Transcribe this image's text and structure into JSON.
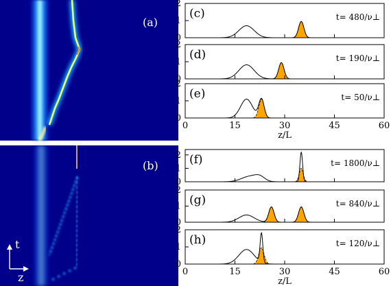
{
  "chart_data": {
    "type": "composite",
    "heatmaps": [
      {
        "panel": "(a)",
        "axis_t_label": "t",
        "axis_z_label": "z"
      },
      {
        "panel": "(b)",
        "axis_t_label": "t",
        "axis_z_label": "z"
      }
    ],
    "line_panels": [
      {
        "panel": "(c)",
        "time_label": "t= 480/ν⊥",
        "xlim": [
          0,
          60
        ],
        "ylim": [
          0,
          2
        ],
        "yticks": [
          "0",
          "1",
          "2"
        ],
        "broad_peak": {
          "center": 18.5,
          "height": 0.7,
          "width": 2.3
        },
        "filled_peaks": [
          {
            "center": 35.0,
            "height": 0.95,
            "width": 0.8
          }
        ]
      },
      {
        "panel": "(d)",
        "time_label": "t= 190/ν⊥",
        "xlim": [
          0,
          60
        ],
        "ylim": [
          0,
          2
        ],
        "yticks": [
          "0",
          "1",
          "2"
        ],
        "broad_peak": {
          "center": 18.5,
          "height": 0.82,
          "width": 2.3
        },
        "filled_peaks": [
          {
            "center": 29.0,
            "height": 0.95,
            "width": 0.8
          }
        ]
      },
      {
        "panel": "(e)",
        "time_label": "t= 50/ν⊥",
        "xlim": [
          0,
          60
        ],
        "ylim": [
          0,
          2
        ],
        "yticks": [
          "0",
          "1",
          "2"
        ],
        "broad_peak": {
          "center": 18.5,
          "height": 1.1,
          "width": 1.8
        },
        "filled_peaks": [
          {
            "center": 23.0,
            "height": 1.1,
            "width": 0.8
          }
        ]
      },
      {
        "panel": "(f)",
        "time_label": "t= 1800/ν⊥",
        "xlim": [
          0,
          60
        ],
        "ylim": [
          0,
          2.4
        ],
        "yticks": [
          "0",
          "1",
          "2"
        ],
        "broad_peak": {
          "center": 19.5,
          "height": 0.4,
          "width": 2.5
        },
        "filled_peaks": [
          {
            "center": 35.0,
            "height": 1.0,
            "width": 0.6
          }
        ],
        "sharp_peak": {
          "center": 35.0,
          "height": 2.2,
          "width": 0.4
        }
      },
      {
        "panel": "(g)",
        "time_label": "t= 840/ν⊥",
        "xlim": [
          0,
          60
        ],
        "ylim": [
          0,
          2
        ],
        "yticks": [
          "0",
          "1",
          "2"
        ],
        "broad_peak": {
          "center": 18.5,
          "height": 0.45,
          "width": 2.3
        },
        "filled_peaks": [
          {
            "center": 26.0,
            "height": 0.95,
            "width": 0.8
          },
          {
            "center": 35.0,
            "height": 0.95,
            "width": 0.8
          }
        ]
      },
      {
        "panel": "(h)",
        "time_label": "t= 120/ν⊥",
        "xlim": [
          0,
          60
        ],
        "ylim": [
          0,
          2
        ],
        "yticks": [
          "0",
          "1",
          "2"
        ],
        "broad_peak": {
          "center": 18.5,
          "height": 0.85,
          "width": 2.3
        },
        "filled_peaks": [
          {
            "center": 23.0,
            "height": 0.95,
            "width": 0.8
          }
        ],
        "sharp_peak": {
          "center": 23.0,
          "height": 1.7,
          "width": 0.4
        }
      }
    ],
    "x_ticks": [
      "0",
      "15",
      "30",
      "45",
      "60"
    ],
    "xlabel": "z/L",
    "colors": {
      "heat_bg": "#00008b",
      "fill": "#ffa500",
      "line": "#000000"
    }
  }
}
